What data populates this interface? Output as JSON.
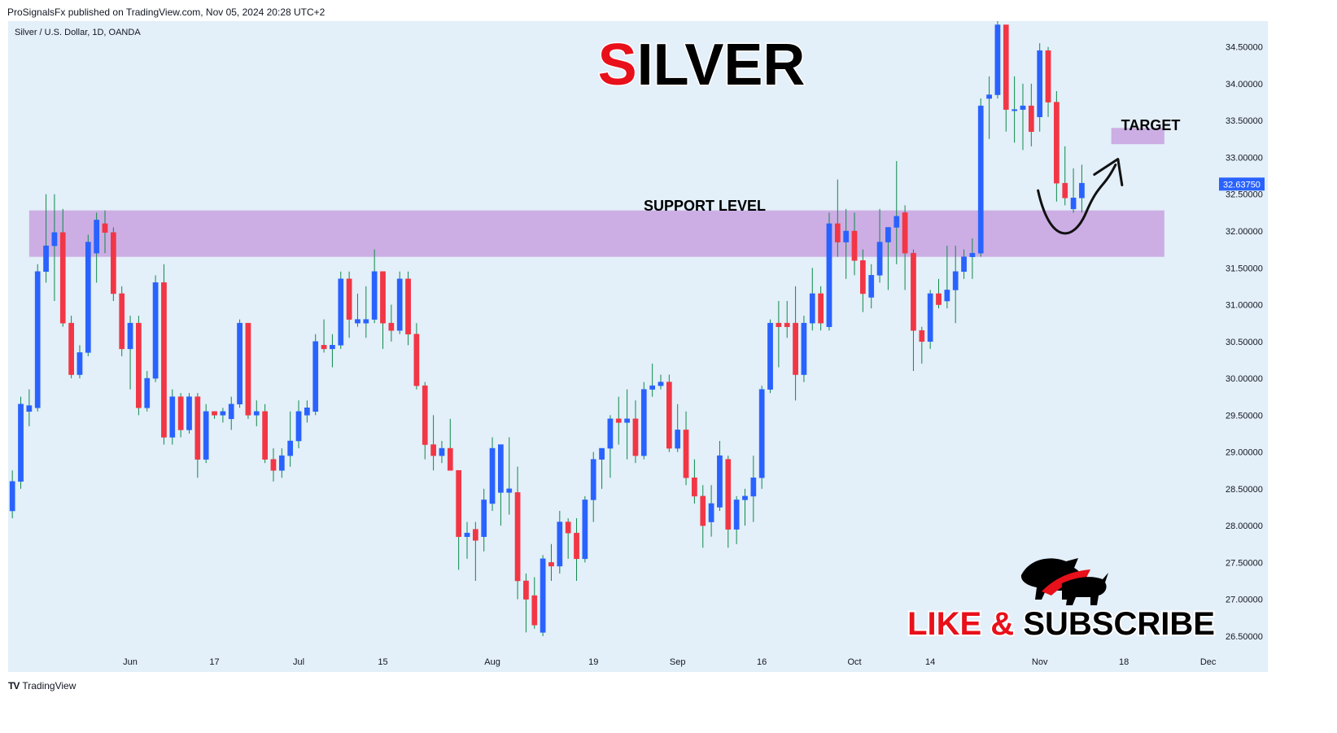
{
  "header": {
    "published": "ProSignalsFx published on TradingView.com, Nov 05, 2024 20:28 UTC+2"
  },
  "symbol_info": "Silver / U.S. Dollar, 1D, OANDA",
  "footer": {
    "brand": "TradingView"
  },
  "colors": {
    "bull": "#2962ff",
    "bear": "#f23645",
    "zone": "#c9a6e1",
    "bg": "#e3eff9",
    "price_tag": "#2962ff",
    "title_accent": "#e8101a"
  },
  "annotations": {
    "title_first": "S",
    "title_rest": "ILVER",
    "support_label": "SUPPORT LEVEL",
    "target_label": "TARGET",
    "cta_like": "LIKE & ",
    "cta_sub": "SUBSCRIBE",
    "logo_icon": "bull-bear-icon"
  },
  "chart_data": {
    "type": "candlestick",
    "title": "SILVER",
    "ylim": [
      26.3,
      34.85
    ],
    "y_ticks": [
      "34.50000",
      "34.00000",
      "33.50000",
      "33.00000",
      "32.50000",
      "32.00000",
      "31.50000",
      "31.00000",
      "30.50000",
      "30.00000",
      "29.50000",
      "29.00000",
      "28.50000",
      "28.00000",
      "27.50000",
      "27.00000",
      "26.50000"
    ],
    "x_ticks": [
      {
        "label": "Jun",
        "index": 14
      },
      {
        "label": "17",
        "index": 24
      },
      {
        "label": "Jul",
        "index": 34
      },
      {
        "label": "15",
        "index": 44
      },
      {
        "label": "Aug",
        "index": 57
      },
      {
        "label": "19",
        "index": 69
      },
      {
        "label": "Sep",
        "index": 79
      },
      {
        "label": "16",
        "index": 89
      },
      {
        "label": "Oct",
        "index": 100
      },
      {
        "label": "14",
        "index": 109
      },
      {
        "label": "Nov",
        "index": 122
      },
      {
        "label": "18",
        "index": 132
      },
      {
        "label": "Dec",
        "index": 142
      }
    ],
    "x_span": [
      -0.5,
      143
    ],
    "last_price": "32.63750",
    "support_zone": [
      31.65,
      32.28
    ],
    "target_zone": [
      33.18,
      33.4
    ],
    "target_zone_index": [
      130.5,
      136.8
    ],
    "support_zone_index": [
      2,
      136.8
    ],
    "projection": [
      [
        121.8,
        32.55
      ],
      [
        123.2,
        32.05
      ],
      [
        125,
        31.95
      ],
      [
        127.5,
        32.25
      ],
      [
        131,
        32.9
      ]
    ],
    "candles": [
      {
        "o": 28.2,
        "h": 28.75,
        "l": 28.1,
        "c": 28.6
      },
      {
        "o": 28.6,
        "h": 29.75,
        "l": 28.5,
        "c": 29.65
      },
      {
        "o": 29.55,
        "h": 29.85,
        "l": 29.35,
        "c": 29.63
      },
      {
        "o": 29.6,
        "h": 31.55,
        "l": 29.55,
        "c": 31.45
      },
      {
        "o": 31.45,
        "h": 32.5,
        "l": 31.3,
        "c": 31.8
      },
      {
        "o": 31.8,
        "h": 32.5,
        "l": 31.05,
        "c": 31.98
      },
      {
        "o": 31.98,
        "h": 32.3,
        "l": 30.7,
        "c": 30.75
      },
      {
        "o": 30.75,
        "h": 30.85,
        "l": 30.0,
        "c": 30.05
      },
      {
        "o": 30.05,
        "h": 30.45,
        "l": 30.0,
        "c": 30.35
      },
      {
        "o": 30.35,
        "h": 31.95,
        "l": 30.3,
        "c": 31.85
      },
      {
        "o": 31.7,
        "h": 32.25,
        "l": 31.3,
        "c": 32.15
      },
      {
        "o": 32.1,
        "h": 32.28,
        "l": 31.7,
        "c": 31.98
      },
      {
        "o": 31.98,
        "h": 32.05,
        "l": 31.05,
        "c": 31.15
      },
      {
        "o": 31.15,
        "h": 31.25,
        "l": 30.3,
        "c": 30.4
      },
      {
        "o": 30.4,
        "h": 30.85,
        "l": 29.85,
        "c": 30.75
      },
      {
        "o": 30.75,
        "h": 30.85,
        "l": 29.5,
        "c": 29.6
      },
      {
        "o": 29.6,
        "h": 30.1,
        "l": 29.55,
        "c": 30.0
      },
      {
        "o": 30.0,
        "h": 31.4,
        "l": 29.95,
        "c": 31.3
      },
      {
        "o": 31.3,
        "h": 31.55,
        "l": 29.1,
        "c": 29.2
      },
      {
        "o": 29.2,
        "h": 29.85,
        "l": 29.1,
        "c": 29.75
      },
      {
        "o": 29.75,
        "h": 29.8,
        "l": 29.2,
        "c": 29.3
      },
      {
        "o": 29.3,
        "h": 29.8,
        "l": 29.25,
        "c": 29.75
      },
      {
        "o": 29.75,
        "h": 29.8,
        "l": 28.65,
        "c": 28.9
      },
      {
        "o": 28.9,
        "h": 29.65,
        "l": 28.85,
        "c": 29.55
      },
      {
        "o": 29.55,
        "h": 29.55,
        "l": 29.45,
        "c": 29.5
      },
      {
        "o": 29.5,
        "h": 29.6,
        "l": 29.4,
        "c": 29.55
      },
      {
        "o": 29.45,
        "h": 29.75,
        "l": 29.3,
        "c": 29.65
      },
      {
        "o": 29.65,
        "h": 30.8,
        "l": 29.6,
        "c": 30.75
      },
      {
        "o": 30.75,
        "h": 30.75,
        "l": 29.45,
        "c": 29.5
      },
      {
        "o": 29.5,
        "h": 29.7,
        "l": 29.35,
        "c": 29.55
      },
      {
        "o": 29.55,
        "h": 29.65,
        "l": 28.85,
        "c": 28.9
      },
      {
        "o": 28.9,
        "h": 29.05,
        "l": 28.6,
        "c": 28.75
      },
      {
        "o": 28.75,
        "h": 29.05,
        "l": 28.65,
        "c": 28.95
      },
      {
        "o": 28.95,
        "h": 29.55,
        "l": 28.8,
        "c": 29.15
      },
      {
        "o": 29.15,
        "h": 29.7,
        "l": 29.05,
        "c": 29.55
      },
      {
        "o": 29.5,
        "h": 29.7,
        "l": 29.4,
        "c": 29.6
      },
      {
        "o": 29.55,
        "h": 30.6,
        "l": 29.5,
        "c": 30.5
      },
      {
        "o": 30.45,
        "h": 30.8,
        "l": 30.35,
        "c": 30.4
      },
      {
        "o": 30.4,
        "h": 30.6,
        "l": 30.15,
        "c": 30.45
      },
      {
        "o": 30.45,
        "h": 31.45,
        "l": 30.4,
        "c": 31.35
      },
      {
        "o": 31.35,
        "h": 31.45,
        "l": 30.55,
        "c": 30.8
      },
      {
        "o": 30.75,
        "h": 31.15,
        "l": 30.7,
        "c": 30.8
      },
      {
        "o": 30.75,
        "h": 31.25,
        "l": 30.55,
        "c": 30.8
      },
      {
        "o": 30.8,
        "h": 31.75,
        "l": 30.75,
        "c": 31.45
      },
      {
        "o": 31.45,
        "h": 31.45,
        "l": 30.4,
        "c": 30.75
      },
      {
        "o": 30.75,
        "h": 31.0,
        "l": 30.5,
        "c": 30.65
      },
      {
        "o": 30.65,
        "h": 31.45,
        "l": 30.6,
        "c": 31.35
      },
      {
        "o": 31.35,
        "h": 31.45,
        "l": 30.45,
        "c": 30.6
      },
      {
        "o": 30.6,
        "h": 30.75,
        "l": 29.85,
        "c": 29.9
      },
      {
        "o": 29.9,
        "h": 29.95,
        "l": 28.9,
        "c": 29.1
      },
      {
        "o": 29.1,
        "h": 29.5,
        "l": 28.75,
        "c": 28.95
      },
      {
        "o": 28.95,
        "h": 29.15,
        "l": 28.85,
        "c": 29.05
      },
      {
        "o": 29.05,
        "h": 29.45,
        "l": 28.75,
        "c": 28.75
      },
      {
        "o": 28.75,
        "h": 28.75,
        "l": 27.4,
        "c": 27.85
      },
      {
        "o": 27.85,
        "h": 28.05,
        "l": 27.55,
        "c": 27.9
      },
      {
        "o": 27.95,
        "h": 28.05,
        "l": 27.25,
        "c": 27.8
      },
      {
        "o": 27.85,
        "h": 28.5,
        "l": 27.65,
        "c": 28.35
      },
      {
        "o": 28.3,
        "h": 29.2,
        "l": 28.2,
        "c": 29.05
      },
      {
        "o": 28.45,
        "h": 29.1,
        "l": 28.0,
        "c": 29.1
      },
      {
        "o": 28.45,
        "h": 29.2,
        "l": 28.15,
        "c": 28.5
      },
      {
        "o": 28.45,
        "h": 28.8,
        "l": 27.0,
        "c": 27.25
      },
      {
        "o": 27.25,
        "h": 27.35,
        "l": 26.55,
        "c": 27.0
      },
      {
        "o": 27.05,
        "h": 27.3,
        "l": 26.6,
        "c": 26.65
      },
      {
        "o": 26.55,
        "h": 27.6,
        "l": 26.5,
        "c": 27.55
      },
      {
        "o": 27.5,
        "h": 27.75,
        "l": 27.25,
        "c": 27.45
      },
      {
        "o": 27.45,
        "h": 28.2,
        "l": 27.35,
        "c": 28.05
      },
      {
        "o": 28.05,
        "h": 28.1,
        "l": 27.55,
        "c": 27.9
      },
      {
        "o": 27.9,
        "h": 28.1,
        "l": 27.25,
        "c": 27.55
      },
      {
        "o": 27.55,
        "h": 28.4,
        "l": 27.5,
        "c": 28.35
      },
      {
        "o": 28.35,
        "h": 29.0,
        "l": 28.05,
        "c": 28.9
      },
      {
        "o": 28.9,
        "h": 29.0,
        "l": 28.5,
        "c": 29.05
      },
      {
        "o": 29.05,
        "h": 29.5,
        "l": 28.65,
        "c": 29.45
      },
      {
        "o": 29.45,
        "h": 29.75,
        "l": 29.1,
        "c": 29.4
      },
      {
        "o": 29.4,
        "h": 29.85,
        "l": 28.9,
        "c": 29.45
      },
      {
        "o": 29.45,
        "h": 29.7,
        "l": 28.85,
        "c": 28.95
      },
      {
        "o": 28.95,
        "h": 29.95,
        "l": 28.9,
        "c": 29.85
      },
      {
        "o": 29.85,
        "h": 30.2,
        "l": 29.75,
        "c": 29.9
      },
      {
        "o": 29.9,
        "h": 30.05,
        "l": 29.85,
        "c": 29.95
      },
      {
        "o": 29.95,
        "h": 30.05,
        "l": 29.0,
        "c": 29.05
      },
      {
        "o": 29.05,
        "h": 29.65,
        "l": 29.0,
        "c": 29.3
      },
      {
        "o": 29.3,
        "h": 29.55,
        "l": 28.55,
        "c": 28.65
      },
      {
        "o": 28.65,
        "h": 28.9,
        "l": 28.3,
        "c": 28.4
      },
      {
        "o": 28.4,
        "h": 28.55,
        "l": 27.7,
        "c": 28.0
      },
      {
        "o": 28.05,
        "h": 28.55,
        "l": 27.85,
        "c": 28.3
      },
      {
        "o": 28.25,
        "h": 29.15,
        "l": 28.2,
        "c": 28.95
      },
      {
        "o": 28.9,
        "h": 28.95,
        "l": 27.7,
        "c": 27.95
      },
      {
        "o": 27.95,
        "h": 28.4,
        "l": 27.75,
        "c": 28.35
      },
      {
        "o": 28.35,
        "h": 28.5,
        "l": 28.0,
        "c": 28.4
      },
      {
        "o": 28.4,
        "h": 28.95,
        "l": 28.05,
        "c": 28.65
      },
      {
        "o": 28.65,
        "h": 29.9,
        "l": 28.5,
        "c": 29.85
      },
      {
        "o": 29.85,
        "h": 30.8,
        "l": 29.8,
        "c": 30.75
      },
      {
        "o": 30.75,
        "h": 31.05,
        "l": 30.15,
        "c": 30.7
      },
      {
        "o": 30.75,
        "h": 31.05,
        "l": 30.55,
        "c": 30.7
      },
      {
        "o": 30.75,
        "h": 31.25,
        "l": 29.7,
        "c": 30.05
      },
      {
        "o": 30.05,
        "h": 30.85,
        "l": 29.95,
        "c": 30.75
      },
      {
        "o": 30.75,
        "h": 31.5,
        "l": 30.65,
        "c": 31.15
      },
      {
        "o": 31.15,
        "h": 31.25,
        "l": 30.65,
        "c": 30.75
      },
      {
        "o": 30.7,
        "h": 32.25,
        "l": 30.65,
        "c": 32.1
      },
      {
        "o": 32.1,
        "h": 32.7,
        "l": 31.65,
        "c": 31.85
      },
      {
        "o": 31.85,
        "h": 32.3,
        "l": 31.35,
        "c": 32.0
      },
      {
        "o": 32.0,
        "h": 32.25,
        "l": 31.4,
        "c": 31.6
      },
      {
        "o": 31.6,
        "h": 31.75,
        "l": 30.9,
        "c": 31.15
      },
      {
        "o": 31.1,
        "h": 31.55,
        "l": 30.95,
        "c": 31.4
      },
      {
        "o": 31.4,
        "h": 32.3,
        "l": 31.3,
        "c": 31.85
      },
      {
        "o": 31.85,
        "h": 32.05,
        "l": 31.2,
        "c": 32.05
      },
      {
        "o": 32.05,
        "h": 32.95,
        "l": 31.55,
        "c": 32.2
      },
      {
        "o": 32.25,
        "h": 32.35,
        "l": 31.2,
        "c": 31.7
      },
      {
        "o": 31.7,
        "h": 31.75,
        "l": 30.1,
        "c": 30.65
      },
      {
        "o": 30.65,
        "h": 30.7,
        "l": 30.2,
        "c": 30.5
      },
      {
        "o": 30.5,
        "h": 31.2,
        "l": 30.4,
        "c": 31.15
      },
      {
        "o": 31.15,
        "h": 31.35,
        "l": 30.95,
        "c": 31.0
      },
      {
        "o": 31.05,
        "h": 31.8,
        "l": 30.95,
        "c": 31.2
      },
      {
        "o": 31.2,
        "h": 31.8,
        "l": 30.75,
        "c": 31.45
      },
      {
        "o": 31.45,
        "h": 31.75,
        "l": 31.35,
        "c": 31.65
      },
      {
        "o": 31.65,
        "h": 31.9,
        "l": 31.35,
        "c": 31.7
      },
      {
        "o": 31.7,
        "h": 33.8,
        "l": 31.65,
        "c": 33.7
      },
      {
        "o": 33.8,
        "h": 34.1,
        "l": 33.25,
        "c": 33.85
      },
      {
        "o": 33.85,
        "h": 34.85,
        "l": 33.8,
        "c": 34.8
      },
      {
        "o": 34.8,
        "h": 34.8,
        "l": 33.35,
        "c": 33.65
      },
      {
        "o": 33.65,
        "h": 34.1,
        "l": 33.2,
        "c": 33.65
      },
      {
        "o": 33.65,
        "h": 34.0,
        "l": 33.1,
        "c": 33.7
      },
      {
        "o": 33.7,
        "h": 34.0,
        "l": 33.15,
        "c": 33.35
      },
      {
        "o": 33.55,
        "h": 34.55,
        "l": 33.35,
        "c": 34.45
      },
      {
        "o": 34.45,
        "h": 34.5,
        "l": 33.55,
        "c": 33.75
      },
      {
        "o": 33.75,
        "h": 33.9,
        "l": 32.4,
        "c": 32.65
      },
      {
        "o": 32.65,
        "h": 33.15,
        "l": 32.35,
        "c": 32.45
      },
      {
        "o": 32.3,
        "h": 32.85,
        "l": 32.25,
        "c": 32.45
      },
      {
        "o": 32.45,
        "h": 32.9,
        "l": 32.25,
        "c": 32.65
      }
    ]
  }
}
